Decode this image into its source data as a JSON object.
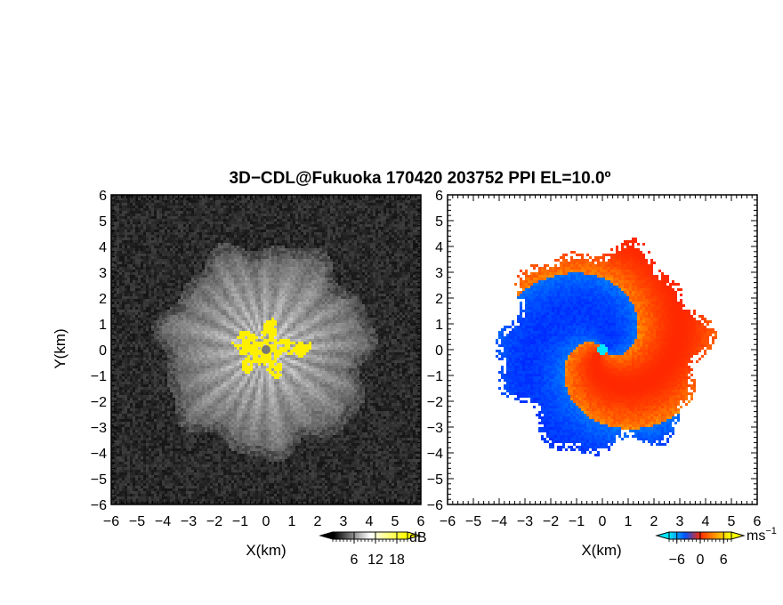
{
  "title": "3D−CDL@Fukuoka 170420 203752 PPI EL=10.0º",
  "chart_data": [
    {
      "type": "heatmap",
      "panel": "left",
      "quantity": "reflectivity",
      "xlabel": "X(km)",
      "ylabel": "Y(km)",
      "xlim": [
        -6,
        6
      ],
      "ylim": [
        -6,
        6
      ],
      "x_ticks": [
        -6,
        -5,
        -4,
        -3,
        -2,
        -1,
        0,
        1,
        2,
        3,
        4,
        5,
        6
      ],
      "y_ticks": [
        -6,
        -5,
        -4,
        -3,
        -2,
        -1,
        0,
        1,
        2,
        3,
        4,
        5,
        6
      ],
      "grid": false,
      "colormap": "grayscale with yellow above 18 dB",
      "radar_site": [
        0,
        0
      ],
      "echo_radius_km": 4.1,
      "colorbar": {
        "unit": "dB",
        "ticks": [
          6,
          12,
          18
        ],
        "range": [
          0,
          21
        ],
        "colors": [
          "#000000",
          "#ffffff",
          "#ffff00"
        ]
      }
    },
    {
      "type": "heatmap",
      "panel": "right",
      "quantity": "doppler velocity",
      "xlabel": "X(km)",
      "ylabel": "",
      "xlim": [
        -6,
        6
      ],
      "ylim": [
        -6,
        6
      ],
      "x_ticks": [
        -6,
        -5,
        -4,
        -3,
        -2,
        -1,
        0,
        1,
        2,
        3,
        4,
        5,
        6
      ],
      "y_ticks": [
        -6,
        -5,
        -4,
        -3,
        -2,
        -1,
        0,
        1,
        2,
        3,
        4,
        5,
        6
      ],
      "grid": false,
      "colormap": "blue negative, red/orange positive",
      "radar_site": [
        0,
        0
      ],
      "echo_radius_km": 4.0,
      "colorbar": {
        "unit": "ms",
        "unit_exponent": "−1",
        "ticks": [
          -6,
          0,
          6
        ],
        "range": [
          -8,
          8
        ],
        "colors": [
          "#00e5ff",
          "#0050ff",
          "#ff2a00",
          "#ff9900",
          "#ffff00"
        ]
      }
    }
  ]
}
